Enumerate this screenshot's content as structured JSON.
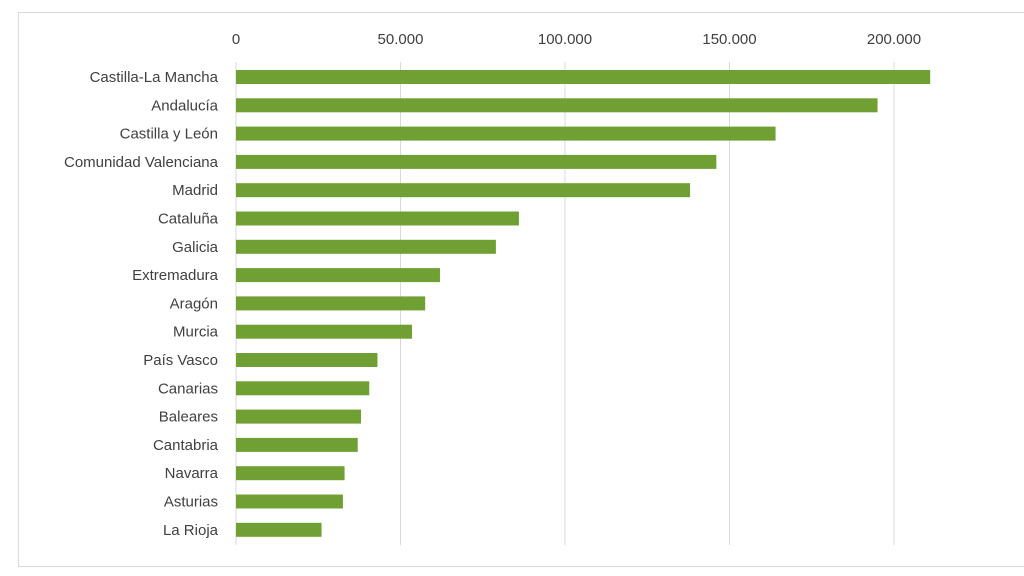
{
  "chart_data": {
    "type": "bar",
    "orientation": "horizontal",
    "title": "",
    "xlabel": "",
    "ylabel": "",
    "xlim": [
      0,
      240000
    ],
    "x_ticks": [
      0,
      50000,
      100000,
      150000,
      200000
    ],
    "x_tick_labels": [
      "0",
      "50.000",
      "100.000",
      "150.000",
      "200.000"
    ],
    "x_axis_position": "top",
    "grid": "vertical",
    "legend": "none",
    "bar_color": "#70a034",
    "categories": [
      "Castilla-La Mancha",
      "Andalucía",
      "Castilla y León",
      "Comunidad Valenciana",
      "Madrid",
      "Cataluña",
      "Galicia",
      "Extremadura",
      "Aragón",
      "Murcia",
      "País Vasco",
      "Canarias",
      "Baleares",
      "Cantabria",
      "Navarra",
      "Asturias",
      "La Rioja"
    ],
    "values": [
      211000,
      195000,
      164000,
      146000,
      138000,
      86000,
      79000,
      62000,
      57500,
      53500,
      43000,
      40500,
      38000,
      37000,
      33000,
      32500,
      26000
    ]
  }
}
